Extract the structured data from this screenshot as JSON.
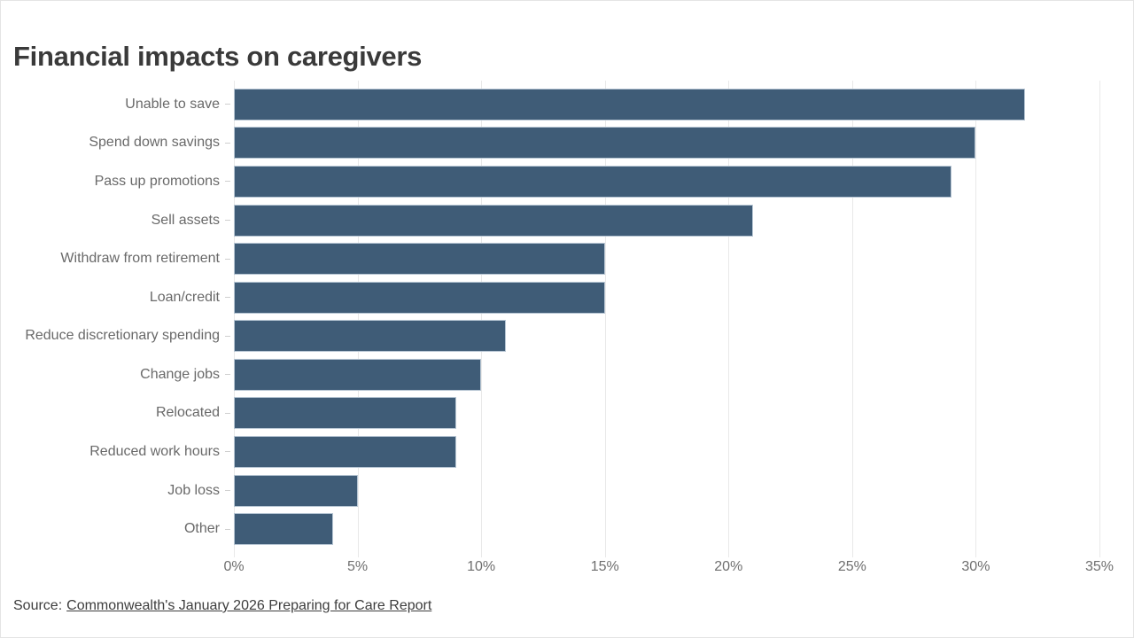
{
  "page": {
    "title": "Financial impacts on caregivers",
    "source_prefix": "Source:",
    "source_link": "Commonwealth's January 2026 Preparing for Care Report"
  },
  "chart_data": {
    "type": "bar",
    "orientation": "horizontal",
    "title": "Financial impacts on caregivers",
    "categories": [
      "Unable to save",
      "Spend down savings",
      "Pass up promotions",
      "Sell assets",
      "Withdraw from retirement",
      "Loan/credit",
      "Reduce discretionary spending",
      "Change jobs",
      "Relocated",
      "Reduced work hours",
      "Job loss",
      "Other"
    ],
    "values": [
      32,
      30,
      29,
      21,
      15,
      15,
      11,
      10,
      9,
      9,
      5,
      4
    ],
    "unit": "%",
    "xlabel": "",
    "ylabel": "",
    "xlim": [
      0,
      35
    ],
    "xticks": [
      0,
      5,
      10,
      15,
      20,
      25,
      30,
      35
    ],
    "xtick_labels": [
      "0%",
      "5%",
      "10%",
      "15%",
      "20%",
      "25%",
      "30%",
      "35%"
    ],
    "grid": true,
    "legend": false,
    "colors": {
      "bar_fill": "#3f5c77",
      "bar_border": "#b6c5d3",
      "gridline": "#e9e9e9",
      "axis_text": "#6e6e6e",
      "label_text": "#696969",
      "title_text": "#3a3a3a",
      "source_text": "#3d3d3d",
      "background": "#ffffff"
    }
  }
}
